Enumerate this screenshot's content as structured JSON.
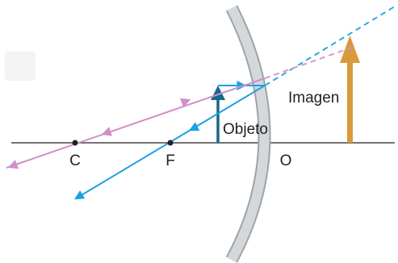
{
  "diagram": {
    "labels": {
      "center": "C",
      "focus": "F",
      "vertex": "O",
      "object": "Objeto",
      "image": "Imagen"
    },
    "colors": {
      "axis": "#231f20",
      "mirror_fill": "#c9cdd1",
      "mirror_edge": "#9ea4a9",
      "ray_parallel": "#1ba1e2",
      "ray_center": "#cf8fc9",
      "object_arrow": "#19678a",
      "image_arrow": "#d99a3c",
      "background": "#ffffff"
    }
  }
}
